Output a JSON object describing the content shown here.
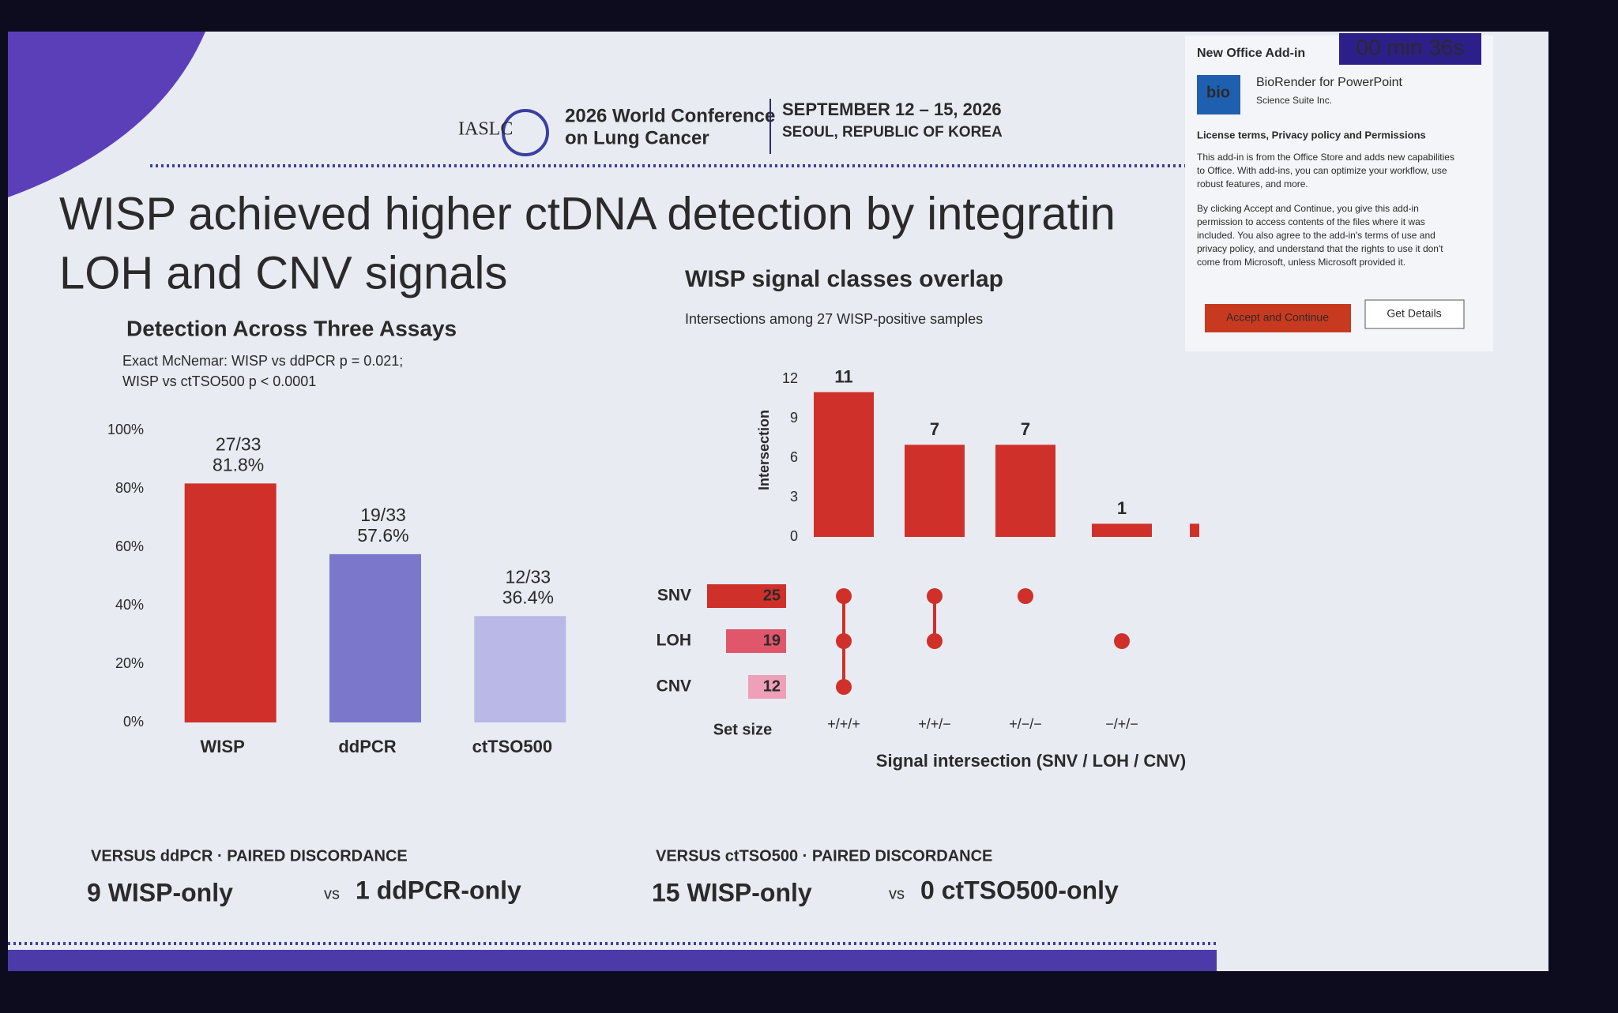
{
  "header": {
    "org": "IASLC",
    "conference": [
      "2026 World Conference",
      "on Lung Cancer"
    ],
    "dates": "SEPTEMBER 12 – 15, 2026",
    "location": "SEOUL, REPUBLIC OF KOREA"
  },
  "slide_title": [
    "WISP achieved higher ctDNA detection by integratin",
    "LOH and CNV signals"
  ],
  "chart_data": [
    {
      "type": "bar",
      "title": "Detection Across Three Assays",
      "subtitle": [
        "Exact McNemar: WISP vs ddPCR p = 0.021;",
        "WISP vs ctTSO500 p < 0.0001"
      ],
      "categories": [
        "WISP",
        "ddPCR",
        "ctTSO500"
      ],
      "values": [
        81.8,
        57.6,
        36.4
      ],
      "value_labels": [
        "81.8%",
        "57.6%",
        "36.4%"
      ],
      "annotations": [
        "27/33",
        "19/33",
        "12/33"
      ],
      "colors": [
        "#d0302a",
        "#7b78cc",
        "#b9b8e6"
      ],
      "ylim": [
        0,
        100
      ],
      "yticks": [
        {
          "value": 0,
          "label": "0%"
        },
        {
          "value": 20,
          "label": "20%"
        },
        {
          "value": 40,
          "label": "40%"
        },
        {
          "value": 60,
          "label": "60%"
        },
        {
          "value": 80,
          "label": "80%"
        },
        {
          "value": 100,
          "label": "100%"
        }
      ]
    },
    {
      "type": "upset",
      "title": "WISP signal classes overlap",
      "subtitle": "Intersections among 27 WISP-positive samples",
      "categories": [
        "+/+/+",
        "+/+/−",
        "+/−/−",
        "−/+/−",
        null
      ],
      "values": [
        11,
        7,
        7,
        1,
        1
      ],
      "value_labels": [
        "11",
        "7",
        "7",
        "1",
        null
      ],
      "color": "#d0302a",
      "ylabel": "Intersection",
      "xlabel": "Signal intersection (SNV / LOH / CNV)",
      "ylim": [
        0,
        12
      ],
      "yticks": [
        0,
        3,
        6,
        9,
        12
      ],
      "sets": [
        {
          "name": "SNV",
          "size": 25,
          "color": "#d0302a"
        },
        {
          "name": "LOH",
          "size": 19,
          "color": "#e0566a"
        },
        {
          "name": "CNV",
          "size": 12,
          "color": "#eda0b8"
        }
      ],
      "set_size_label": "Set size"
    }
  ],
  "footer": [
    {
      "heading": "VERSUS ddPCR · PAIRED DISCORDANCE",
      "left": "9 WISP-only",
      "vs": "vs",
      "right": "1 ddPCR-only"
    },
    {
      "heading": "VERSUS ctTSO500 · PAIRED DISCORDANCE",
      "left": "15 WISP-only",
      "vs": "vs",
      "right": "0 ctTSO500-only"
    }
  ],
  "addin": {
    "timer": "00 min 36s",
    "heading": "New Office Add-in",
    "logo": "bio",
    "name": "BioRender for PowerPoint",
    "publisher": "Science Suite Inc.",
    "terms_heading": "License terms, Privacy policy and Permissions",
    "para1": [
      "This add-in is from the Office Store and adds new capabilities",
      "to Office. With add-ins, you can optimize your workflow, use",
      "robust features, and more."
    ],
    "para2": [
      "By clicking Accept and Continue, you give this add-in",
      "permission to access contents of the files where it was",
      "included. You also agree to the add-in's terms of use and",
      "privacy policy, and understand that the rights to use it don't",
      "come from Microsoft, unless Microsoft provided it."
    ],
    "accept": "Accept and Continue",
    "details": "Get Details"
  }
}
